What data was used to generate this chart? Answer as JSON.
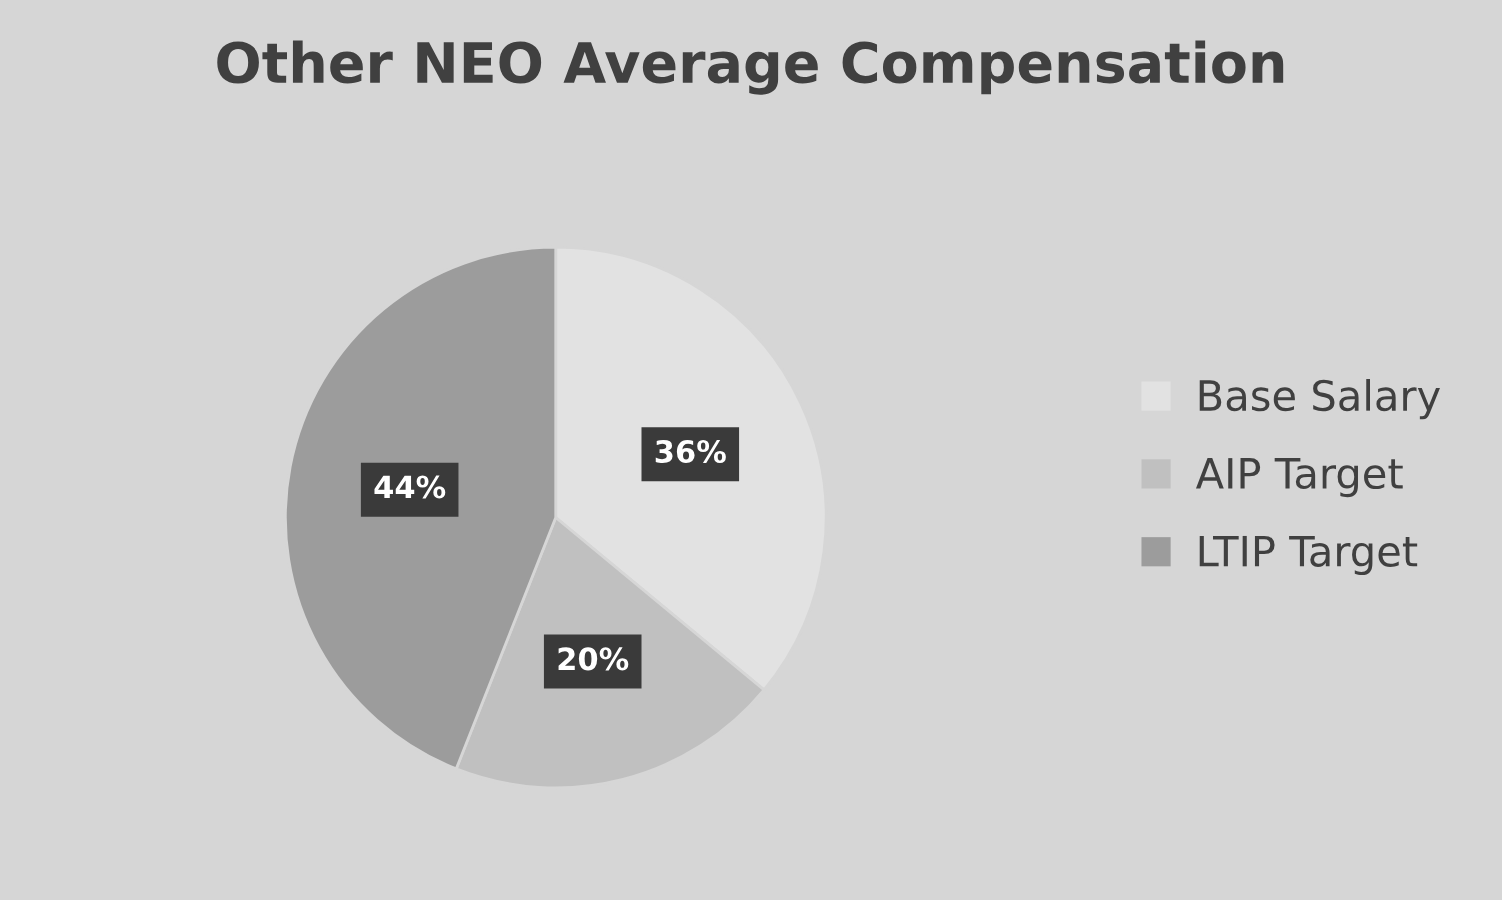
{
  "chart_data": {
    "type": "pie",
    "title": "Other NEO Average Compensation",
    "categories": [
      "Base Salary",
      "AIP Target",
      "LTIP Target"
    ],
    "values": [
      36,
      20,
      44
    ],
    "colors": [
      "#e2e2e2",
      "#c0c0c0",
      "#9c9c9c"
    ],
    "value_labels": [
      "36%",
      "20%",
      "44%"
    ],
    "legend": "right"
  }
}
